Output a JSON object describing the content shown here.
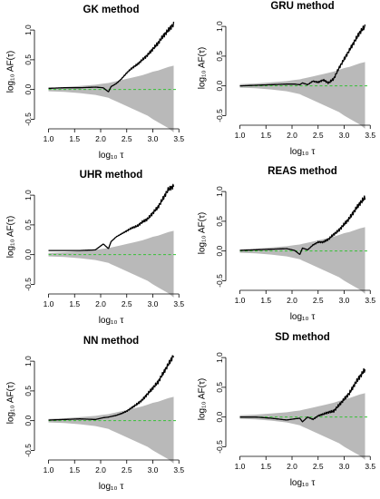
{
  "chart_data": [
    {
      "type": "line",
      "title": "GK method",
      "xlabel": "log₁₀ τ",
      "ylabel": "log₁₀ AF(τ)",
      "xlim": [
        0.8,
        3.6
      ],
      "ylim": [
        -0.6,
        1.2
      ],
      "xticks": [
        "1.0",
        "1.5",
        "2.0",
        "2.5",
        "3.0",
        "3.5"
      ],
      "yticks": [
        "-0.5",
        "0.0",
        "0.5",
        "1.0"
      ],
      "x": [
        1.0,
        1.3,
        1.6,
        1.9,
        2.05,
        2.15,
        2.2,
        2.3,
        2.4,
        2.5,
        2.6,
        2.7,
        2.8,
        2.9,
        3.0,
        3.1,
        3.2,
        3.3,
        3.4
      ],
      "series": [
        {
          "values": [
            0.02,
            0.03,
            0.03,
            0.04,
            0.03,
            -0.04,
            0.05,
            0.1,
            0.18,
            0.28,
            0.36,
            0.42,
            0.5,
            0.58,
            0.68,
            0.78,
            0.9,
            1.0,
            1.1
          ]
        },
        {
          "kind": "band",
          "upper": [
            0.03,
            0.04,
            0.06,
            0.08,
            0.1,
            0.11,
            0.12,
            0.14,
            0.16,
            0.18,
            0.2,
            0.22,
            0.24,
            0.27,
            0.3,
            0.32,
            0.35,
            0.38,
            0.4
          ],
          "lower": [
            -0.03,
            -0.04,
            -0.06,
            -0.09,
            -0.12,
            -0.14,
            -0.16,
            -0.2,
            -0.24,
            -0.28,
            -0.32,
            -0.36,
            -0.4,
            -0.44,
            -0.5,
            -0.55,
            -0.6,
            -0.65,
            -0.72
          ]
        }
      ],
      "reference_line": {
        "y": 0.0,
        "style": "dashed",
        "color": "#35c235"
      }
    },
    {
      "type": "line",
      "title": "GRU method",
      "xlabel": "log₁₀ τ",
      "ylabel": "log₁₀ AF(τ)",
      "xlim": [
        0.8,
        3.6
      ],
      "ylim": [
        -0.6,
        1.2
      ],
      "xticks": [
        "1.0",
        "1.5",
        "2.0",
        "2.5",
        "3.0",
        "3.5"
      ],
      "yticks": [
        "-0.5",
        "0.0",
        "0.5",
        "1.0"
      ],
      "x": [
        1.0,
        1.3,
        1.6,
        1.9,
        2.05,
        2.15,
        2.2,
        2.3,
        2.4,
        2.5,
        2.6,
        2.7,
        2.8,
        2.9,
        3.0,
        3.1,
        3.2,
        3.3,
        3.4
      ],
      "series": [
        {
          "values": [
            0.0,
            0.01,
            0.02,
            0.03,
            0.03,
            0.02,
            0.05,
            0.02,
            0.08,
            0.06,
            0.1,
            0.05,
            0.12,
            0.3,
            0.45,
            0.6,
            0.75,
            0.9,
            1.0
          ]
        },
        {
          "kind": "band",
          "upper": [
            0.03,
            0.04,
            0.06,
            0.08,
            0.1,
            0.11,
            0.12,
            0.14,
            0.16,
            0.18,
            0.2,
            0.22,
            0.24,
            0.27,
            0.3,
            0.32,
            0.35,
            0.38,
            0.4
          ],
          "lower": [
            -0.03,
            -0.04,
            -0.06,
            -0.09,
            -0.12,
            -0.14,
            -0.16,
            -0.2,
            -0.24,
            -0.28,
            -0.32,
            -0.36,
            -0.4,
            -0.44,
            -0.5,
            -0.55,
            -0.6,
            -0.65,
            -0.72
          ]
        }
      ],
      "reference_line": {
        "y": 0.0,
        "style": "dashed",
        "color": "#35c235"
      }
    },
    {
      "type": "line",
      "title": "UHR method",
      "xlabel": "log₁₀ τ",
      "ylabel": "log₁₀ AF(τ)",
      "xlim": [
        0.8,
        3.6
      ],
      "ylim": [
        -0.6,
        1.2
      ],
      "xticks": [
        "1.0",
        "1.5",
        "2.0",
        "2.5",
        "3.0",
        "3.5"
      ],
      "yticks": [
        "-0.5",
        "0.0",
        "0.5",
        "1.0"
      ],
      "x": [
        1.0,
        1.3,
        1.6,
        1.9,
        2.05,
        2.15,
        2.2,
        2.3,
        2.4,
        2.5,
        2.6,
        2.7,
        2.8,
        2.9,
        3.0,
        3.1,
        3.2,
        3.3,
        3.4
      ],
      "series": [
        {
          "values": [
            0.07,
            0.07,
            0.07,
            0.08,
            0.18,
            0.1,
            0.22,
            0.3,
            0.35,
            0.4,
            0.45,
            0.48,
            0.55,
            0.6,
            0.7,
            0.8,
            0.95,
            1.1,
            1.15
          ]
        },
        {
          "kind": "band",
          "upper": [
            0.03,
            0.04,
            0.06,
            0.08,
            0.1,
            0.11,
            0.12,
            0.14,
            0.16,
            0.18,
            0.2,
            0.22,
            0.24,
            0.27,
            0.3,
            0.32,
            0.35,
            0.38,
            0.4
          ],
          "lower": [
            -0.03,
            -0.04,
            -0.06,
            -0.09,
            -0.12,
            -0.14,
            -0.16,
            -0.2,
            -0.24,
            -0.28,
            -0.32,
            -0.36,
            -0.4,
            -0.44,
            -0.5,
            -0.55,
            -0.6,
            -0.65,
            -0.72
          ]
        }
      ],
      "reference_line": {
        "y": 0.0,
        "style": "dashed",
        "color": "#35c235"
      }
    },
    {
      "type": "line",
      "title": "REAS method",
      "xlabel": "log₁₀ τ",
      "ylabel": "log₁₀ AF(τ)",
      "xlim": [
        0.8,
        3.6
      ],
      "ylim": [
        -0.6,
        1.2
      ],
      "xticks": [
        "1.0",
        "1.5",
        "2.0",
        "2.5",
        "3.0",
        "3.5"
      ],
      "yticks": [
        "-0.5",
        "0.0",
        "0.5",
        "1.0"
      ],
      "x": [
        1.0,
        1.3,
        1.6,
        1.9,
        2.05,
        2.15,
        2.2,
        2.3,
        2.4,
        2.5,
        2.6,
        2.7,
        2.8,
        2.9,
        3.0,
        3.1,
        3.2,
        3.3,
        3.4
      ],
      "series": [
        {
          "values": [
            0.01,
            0.02,
            0.03,
            0.04,
            0.01,
            -0.06,
            0.05,
            0.02,
            0.1,
            0.15,
            0.15,
            0.2,
            0.28,
            0.35,
            0.45,
            0.55,
            0.68,
            0.8,
            0.9
          ]
        },
        {
          "kind": "band",
          "upper": [
            0.03,
            0.04,
            0.06,
            0.08,
            0.1,
            0.11,
            0.12,
            0.14,
            0.16,
            0.18,
            0.2,
            0.22,
            0.24,
            0.27,
            0.3,
            0.32,
            0.35,
            0.38,
            0.4
          ],
          "lower": [
            -0.03,
            -0.04,
            -0.06,
            -0.09,
            -0.12,
            -0.14,
            -0.16,
            -0.2,
            -0.24,
            -0.28,
            -0.32,
            -0.36,
            -0.4,
            -0.44,
            -0.5,
            -0.55,
            -0.6,
            -0.65,
            -0.72
          ]
        }
      ],
      "reference_line": {
        "y": 0.0,
        "style": "dashed",
        "color": "#35c235"
      }
    },
    {
      "type": "line",
      "title": "NN method",
      "xlabel": "log₁₀ τ",
      "ylabel": "log₁₀ AF(τ)",
      "xlim": [
        0.8,
        3.6
      ],
      "ylim": [
        -0.6,
        1.2
      ],
      "xticks": [
        "1.0",
        "1.5",
        "2.0",
        "2.5",
        "3.0",
        "3.5"
      ],
      "yticks": [
        "-0.5",
        "0.0",
        "0.5",
        "1.0"
      ],
      "x": [
        1.0,
        1.3,
        1.6,
        1.9,
        2.05,
        2.15,
        2.2,
        2.3,
        2.4,
        2.5,
        2.6,
        2.7,
        2.8,
        2.9,
        3.0,
        3.1,
        3.2,
        3.3,
        3.4
      ],
      "series": [
        {
          "values": [
            0.01,
            0.02,
            0.03,
            0.02,
            0.05,
            0.06,
            0.07,
            0.09,
            0.12,
            0.16,
            0.22,
            0.28,
            0.35,
            0.45,
            0.55,
            0.65,
            0.8,
            0.95,
            1.1
          ]
        },
        {
          "kind": "band",
          "upper": [
            0.03,
            0.04,
            0.06,
            0.08,
            0.1,
            0.11,
            0.12,
            0.14,
            0.16,
            0.18,
            0.2,
            0.22,
            0.24,
            0.27,
            0.3,
            0.32,
            0.35,
            0.38,
            0.4
          ],
          "lower": [
            -0.03,
            -0.04,
            -0.06,
            -0.09,
            -0.12,
            -0.14,
            -0.16,
            -0.2,
            -0.24,
            -0.28,
            -0.32,
            -0.36,
            -0.4,
            -0.44,
            -0.5,
            -0.55,
            -0.6,
            -0.65,
            -0.72
          ]
        }
      ],
      "reference_line": {
        "y": 0.0,
        "style": "dashed",
        "color": "#35c235"
      }
    },
    {
      "type": "line",
      "title": "SD method",
      "xlabel": "log₁₀ τ",
      "ylabel": "log₁₀ AF(τ)",
      "xlim": [
        0.8,
        3.6
      ],
      "ylim": [
        -0.6,
        1.2
      ],
      "xticks": [
        "1.0",
        "1.5",
        "2.0",
        "2.5",
        "3.0",
        "3.5"
      ],
      "yticks": [
        "-0.5",
        "0.0",
        "0.5",
        "1.0"
      ],
      "x": [
        1.0,
        1.3,
        1.6,
        1.9,
        2.05,
        2.15,
        2.2,
        2.3,
        2.4,
        2.5,
        2.6,
        2.7,
        2.8,
        2.9,
        3.0,
        3.1,
        3.2,
        3.3,
        3.4
      ],
      "series": [
        {
          "values": [
            0.0,
            0.0,
            -0.02,
            -0.05,
            -0.03,
            -0.02,
            -0.08,
            0.0,
            -0.04,
            0.02,
            0.05,
            0.08,
            0.1,
            0.2,
            0.3,
            0.4,
            0.55,
            0.68,
            0.8
          ]
        },
        {
          "kind": "band",
          "upper": [
            0.03,
            0.04,
            0.06,
            0.08,
            0.1,
            0.11,
            0.12,
            0.14,
            0.16,
            0.18,
            0.2,
            0.22,
            0.24,
            0.27,
            0.3,
            0.32,
            0.35,
            0.38,
            0.4
          ],
          "lower": [
            -0.03,
            -0.04,
            -0.06,
            -0.09,
            -0.12,
            -0.14,
            -0.16,
            -0.2,
            -0.24,
            -0.28,
            -0.32,
            -0.36,
            -0.4,
            -0.44,
            -0.5,
            -0.55,
            -0.6,
            -0.65,
            -0.72
          ]
        }
      ],
      "reference_line": {
        "y": 0.0,
        "style": "dashed",
        "color": "#35c235"
      }
    }
  ]
}
